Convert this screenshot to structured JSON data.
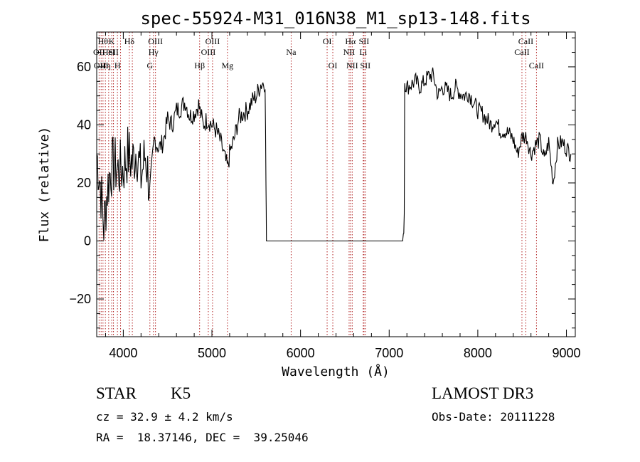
{
  "chart_data": {
    "type": "line",
    "title": "spec-55924-M31_016N38_M1_sp13-148.fits",
    "xlabel": "Wavelength (Å)",
    "ylabel": "Flux (relative)",
    "xlim": [
      3700,
      9100
    ],
    "ylim": [
      -33,
      72
    ],
    "xticks": [
      4000,
      5000,
      6000,
      7000,
      8000,
      9000
    ],
    "xtick_labels": [
      "4000",
      "5000",
      "6000",
      "7000",
      "8000",
      "9000"
    ],
    "yticks": [
      -20,
      0,
      20,
      40,
      60
    ],
    "ytick_labels": [
      "−20",
      "0",
      "20",
      "40",
      "60"
    ],
    "series": [
      {
        "name": "spectrum",
        "x": [
          3700,
          3740,
          3780,
          3820,
          3860,
          3900,
          3950,
          4000,
          4050,
          4100,
          4150,
          4200,
          4250,
          4300,
          4350,
          4400,
          4450,
          4500,
          4550,
          4600,
          4650,
          4700,
          4750,
          4800,
          4850,
          4900,
          4950,
          5000,
          5050,
          5100,
          5150,
          5180,
          5200,
          5250,
          5300,
          5350,
          5400,
          5450,
          5500,
          5550,
          5600,
          5610,
          5615,
          5625,
          7160,
          7170,
          7175,
          7200,
          7250,
          7300,
          7350,
          7400,
          7450,
          7500,
          7550,
          7600,
          7650,
          7700,
          7750,
          7800,
          7850,
          7900,
          7950,
          8000,
          8050,
          8100,
          8150,
          8200,
          8250,
          8300,
          8350,
          8400,
          8450,
          8500,
          8550,
          8600,
          8650,
          8700,
          8750,
          8800,
          8850,
          8900,
          8950,
          9000,
          9050
        ],
        "y": [
          30,
          20,
          5,
          18,
          25,
          26,
          24,
          25,
          30,
          27,
          32,
          22,
          30,
          18,
          35,
          32,
          34,
          42,
          40,
          45,
          46,
          48,
          43,
          44,
          47,
          40,
          42,
          40,
          38,
          34,
          28,
          25,
          30,
          35,
          42,
          44,
          45,
          48,
          50,
          54,
          55,
          20,
          0,
          0,
          0,
          10,
          55,
          53,
          54,
          55,
          53,
          55,
          57,
          57,
          50,
          53,
          52,
          50,
          53,
          51,
          50,
          51,
          48,
          45,
          44,
          42,
          40,
          42,
          38,
          38,
          37,
          35,
          30,
          36,
          36,
          30,
          33,
          35,
          28,
          34,
          20,
          33,
          34,
          32,
          30
        ]
      }
    ],
    "lines": [
      {
        "wavelength": 3727,
        "label": "OII",
        "row": 2
      },
      {
        "wavelength": 3750,
        "label": "OIII",
        "row": 3
      },
      {
        "wavelength": 3771,
        "label": "Hθ",
        "row": 1
      },
      {
        "wavelength": 3798,
        "label": "Hη",
        "row": 3
      },
      {
        "wavelength": 3835,
        "label": "HeI",
        "row": 2
      },
      {
        "wavelength": 3869,
        "label": "K",
        "row": 1
      },
      {
        "wavelength": 3889,
        "label": "SII",
        "row": 2
      },
      {
        "wavelength": 3934,
        "label": "H",
        "row": 3
      },
      {
        "wavelength": 3969,
        "label": "",
        "row": 0
      },
      {
        "wavelength": 4068,
        "label": "Hδ",
        "row": 1
      },
      {
        "wavelength": 4102,
        "label": "",
        "row": 0
      },
      {
        "wavelength": 4300,
        "label": "G",
        "row": 3
      },
      {
        "wavelength": 4340,
        "label": "Hγ",
        "row": 2
      },
      {
        "wavelength": 4363,
        "label": "OIII",
        "row": 1
      },
      {
        "wavelength": 4861,
        "label": "Hβ",
        "row": 3
      },
      {
        "wavelength": 4959,
        "label": "OIII",
        "row": 2
      },
      {
        "wavelength": 5007,
        "label": "OIII",
        "row": 1
      },
      {
        "wavelength": 5175,
        "label": "Mg",
        "row": 3
      },
      {
        "wavelength": 5894,
        "label": "Na",
        "row": 2
      },
      {
        "wavelength": 6300,
        "label": "OI",
        "row": 1
      },
      {
        "wavelength": 6364,
        "label": "OI",
        "row": 3
      },
      {
        "wavelength": 6548,
        "label": "NII",
        "row": 2
      },
      {
        "wavelength": 6563,
        "label": "Hα",
        "row": 1
      },
      {
        "wavelength": 6583,
        "label": "NII",
        "row": 3
      },
      {
        "wavelength": 6707,
        "label": "Li",
        "row": 2
      },
      {
        "wavelength": 6716,
        "label": "SII",
        "row": 1
      },
      {
        "wavelength": 6731,
        "label": "SII",
        "row": 3
      },
      {
        "wavelength": 8498,
        "label": "CaII",
        "row": 2
      },
      {
        "wavelength": 8542,
        "label": "CaII",
        "row": 1
      },
      {
        "wavelength": 8662,
        "label": "CaII",
        "row": 3
      }
    ]
  },
  "info": {
    "class": "STAR",
    "subclass": "K5",
    "survey": "LAMOST DR3",
    "cz": "cz = 32.9 ± 4.2 km/s",
    "obs_date": "Obs-Date: 20111228",
    "radec": "RA =  18.37146, DEC =  39.25046"
  }
}
